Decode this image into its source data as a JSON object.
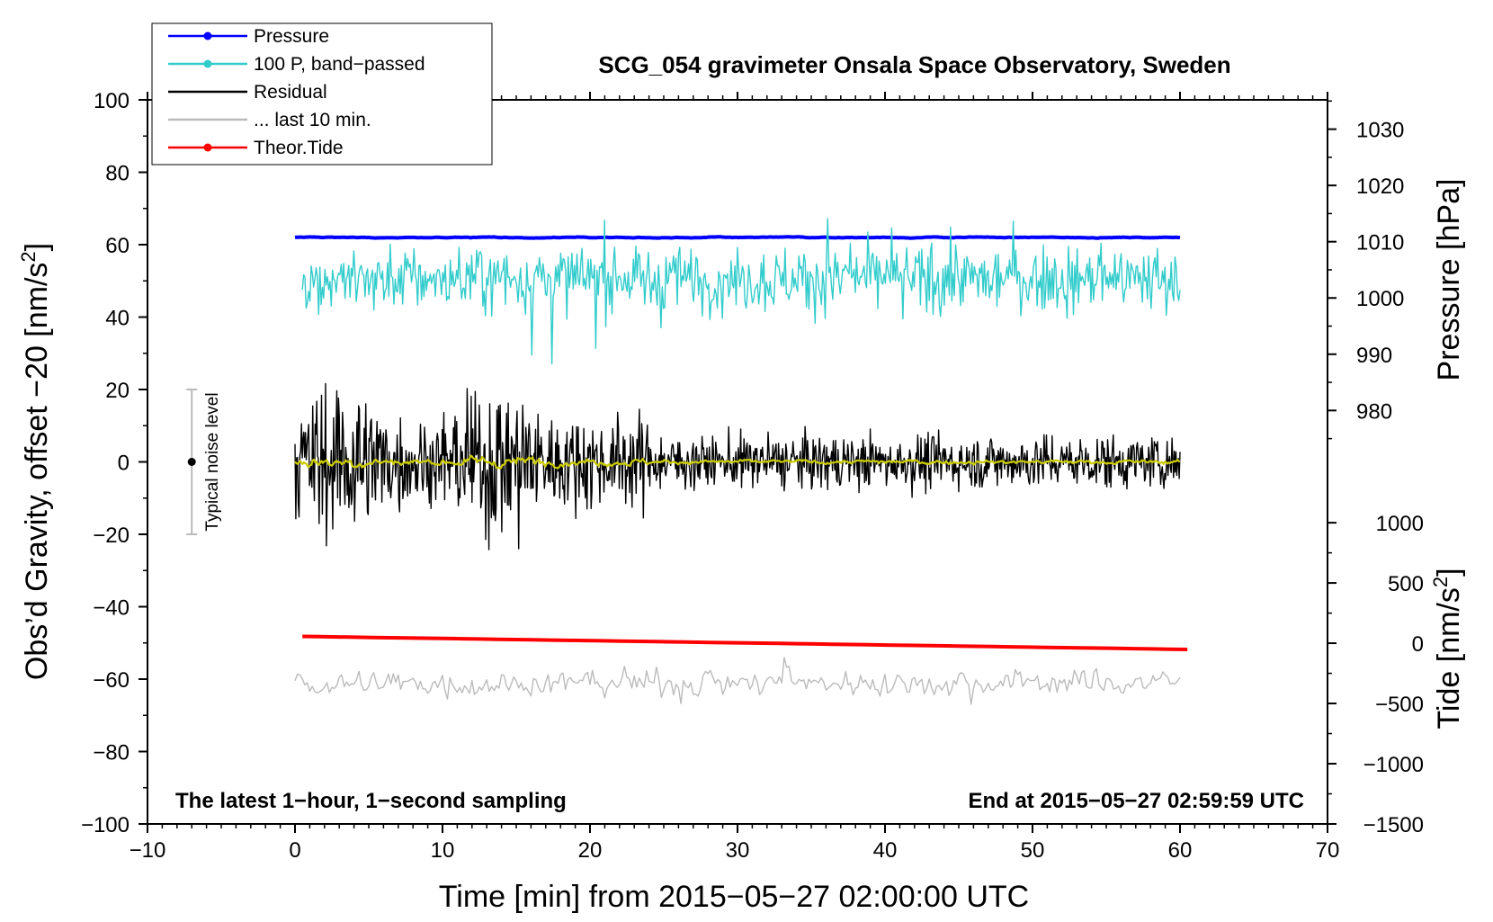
{
  "chart_data": {
    "type": "line",
    "title": "SCG_054 gravimeter Onsala Space Observatory, Sweden",
    "xlabel": "Time [min] from 2015−05−27 02:00:00 UTC",
    "ylabel_left": "Obs’d Gravity, offset −20 [nm/s",
    "ylabel_left_sup": "2",
    "ylabel_left_close": "]",
    "ylabel_right_pressure": "Pressure [hPa]",
    "ylabel_right_tide": "Tide [nm/s",
    "ylabel_right_tide_sup": "2",
    "ylabel_right_tide_close": "]",
    "xlim": [
      -10,
      70
    ],
    "ylim": [
      -100,
      100
    ],
    "x_ticks": [
      -10,
      0,
      10,
      20,
      30,
      40,
      50,
      60,
      70
    ],
    "x_tick_labels": [
      "−10",
      "0",
      "10",
      "20",
      "30",
      "40",
      "50",
      "60",
      "70"
    ],
    "y_ticks": [
      -100,
      -80,
      -60,
      -40,
      -20,
      0,
      20,
      40,
      60,
      80,
      100
    ],
    "y_tick_labels": [
      "−100",
      "−80",
      "−60",
      "−40",
      "−20",
      "0",
      "20",
      "40",
      "60",
      "80",
      "100"
    ],
    "pressure_axis": {
      "ticks": [
        980,
        990,
        1000,
        1010,
        1020,
        1030
      ],
      "tick_labels": [
        "980",
        "990",
        "1000",
        "1010",
        "1020",
        "1030"
      ],
      "map": {
        "value_a": 980,
        "left_a": 14.2,
        "value_b": 1030,
        "left_b": 91.9
      }
    },
    "tide_axis": {
      "ticks": [
        -1500,
        -1000,
        -500,
        0,
        500,
        1000
      ],
      "tick_labels": [
        "−1500",
        "−1000",
        "−500",
        "0",
        "500",
        "1000"
      ],
      "map": {
        "value_a": -1500,
        "left_a": -100,
        "value_b": 1000,
        "left_b": -16.8
      }
    },
    "series": [
      {
        "name": "Pressure",
        "legend_label": "Pressure",
        "color": "#0000ff",
        "marker": true,
        "level": 62.0,
        "amplitude": 0.3,
        "smoothness": 0.9,
        "x_range": [
          0,
          60
        ]
      },
      {
        "name": "100 P, band-passed",
        "legend_label": "100 P, band−passed",
        "color": "#33cccc",
        "marker": true,
        "level": 50.5,
        "amplitude": 4.5,
        "smoothness": 0.0,
        "x_range": [
          0.5,
          60
        ]
      },
      {
        "name": "Residual",
        "legend_label": "Residual",
        "color": "#000000",
        "marker": false,
        "level": 0.0,
        "amplitude": 6.0,
        "smoothness": 0.0,
        "x_range": [
          0,
          60
        ]
      },
      {
        "name": "Residual filtered",
        "legend_label": "",
        "color": "#cccc00",
        "marker": false,
        "level": 0.0,
        "amplitude": 1.3,
        "smoothness": 0.75,
        "x_range": [
          0,
          60
        ]
      },
      {
        "name": "... last 10 min.",
        "legend_label": "... last 10 min.",
        "color": "#bbbbbb",
        "marker": false,
        "level": -61.0,
        "amplitude": 2.6,
        "smoothness": 0.35,
        "x_range": [
          0,
          60
        ]
      },
      {
        "name": "Theor.Tide",
        "legend_label": "Theor.Tide",
        "color": "#ff0000",
        "marker": true,
        "start": -48.2,
        "end": -51.8,
        "x_range": [
          0.5,
          60.5
        ]
      }
    ],
    "noise_marker": {
      "label": "Typical noise level",
      "x": -7,
      "y": 0,
      "low": -20,
      "high": 20
    },
    "note_left": "The latest 1−hour, 1−second sampling",
    "note_right": "End at 2015−05−27 02:59:59 UTC",
    "legend_position": "top-left"
  }
}
